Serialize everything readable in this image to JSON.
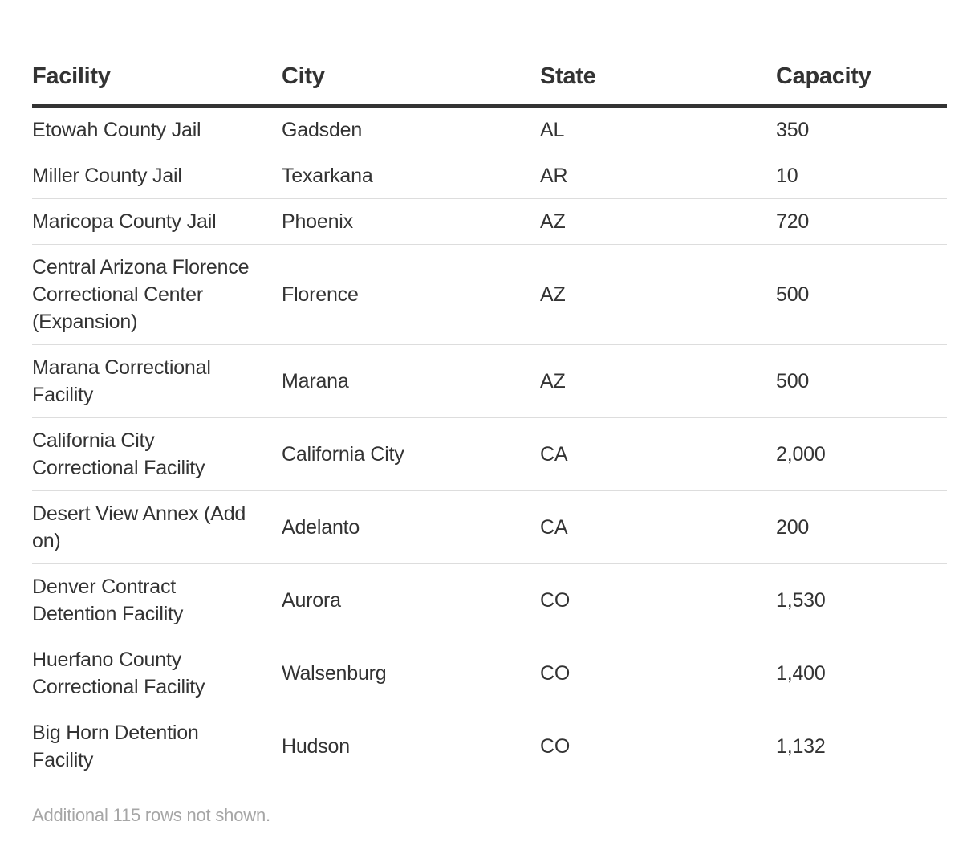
{
  "table": {
    "headers": [
      "Facility",
      "City",
      "State",
      "Capacity"
    ],
    "rows": [
      {
        "facility": "Etowah County Jail",
        "city": "Gadsden",
        "state": "AL",
        "capacity": "350"
      },
      {
        "facility": "Miller County Jail",
        "city": "Texarkana",
        "state": "AR",
        "capacity": "10"
      },
      {
        "facility": "Maricopa County Jail",
        "city": "Phoenix",
        "state": "AZ",
        "capacity": "720"
      },
      {
        "facility": "Central Arizona Florence Correctional Center (Expansion)",
        "city": "Florence",
        "state": "AZ",
        "capacity": "500"
      },
      {
        "facility": "Marana Correctional Facility",
        "city": "Marana",
        "state": "AZ",
        "capacity": "500"
      },
      {
        "facility": "California City Correctional Facility",
        "city": "California City",
        "state": "CA",
        "capacity": "2,000"
      },
      {
        "facility": "Desert View Annex (Add on)",
        "city": "Adelanto",
        "state": "CA",
        "capacity": "200"
      },
      {
        "facility": "Denver Contract Detention Facility",
        "city": "Aurora",
        "state": "CO",
        "capacity": "1,530"
      },
      {
        "facility": "Huerfano County Correctional Facility",
        "city": "Walsenburg",
        "state": "CO",
        "capacity": "1,400"
      },
      {
        "facility": "Big Horn Detention Facility",
        "city": "Hudson",
        "state": "CO",
        "capacity": "1,132"
      }
    ]
  },
  "footer": {
    "note": "Additional 115 rows not shown."
  }
}
